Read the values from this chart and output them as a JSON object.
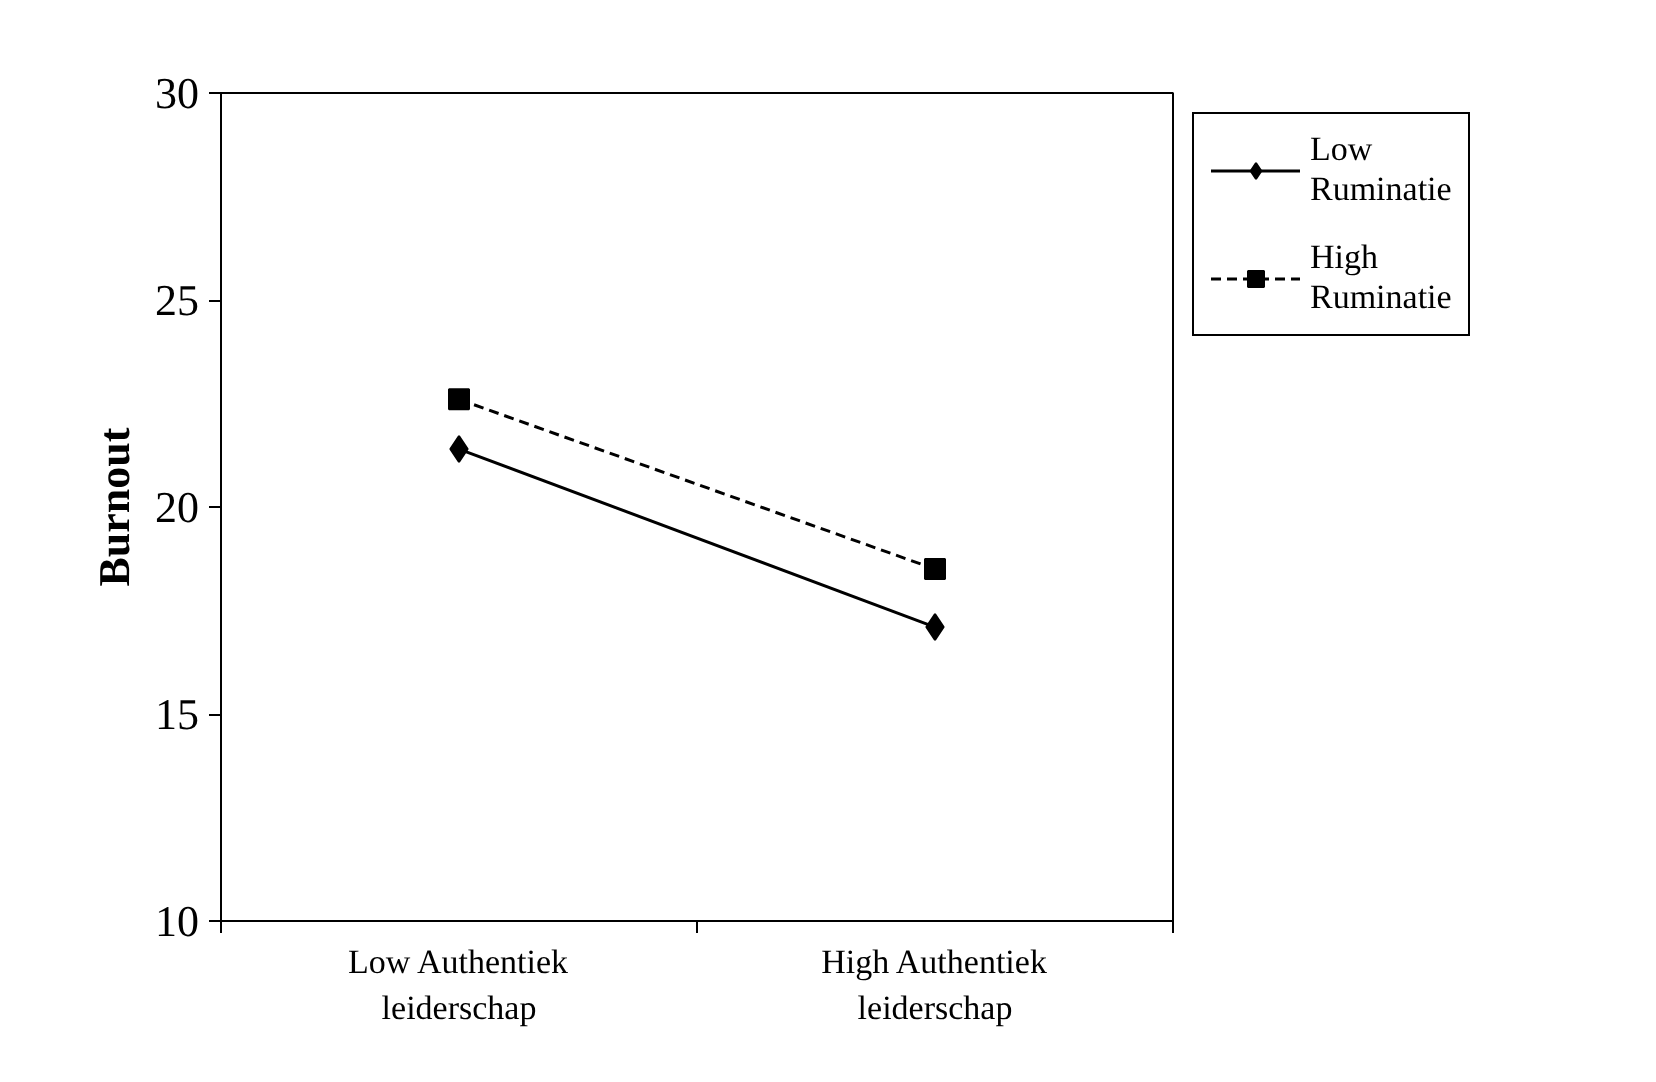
{
  "chart_data": {
    "type": "line",
    "ylabel": "Burnout",
    "categories": [
      "Low Authentiek leiderschap",
      "High Authentiek leiderschap"
    ],
    "ylim": [
      10,
      30
    ],
    "yticks": [
      10,
      15,
      20,
      25,
      30
    ],
    "grid": false,
    "legend": "right",
    "series": [
      {
        "name": "Low Ruminatie",
        "color": "#000000",
        "values": [
          21.4,
          17.1
        ],
        "marker": "diamond",
        "line_style": "solid"
      },
      {
        "name": "High Ruminatie",
        "color": "#000000",
        "values": [
          22.6,
          18.5
        ],
        "marker": "square",
        "line_style": "dashed"
      }
    ]
  }
}
